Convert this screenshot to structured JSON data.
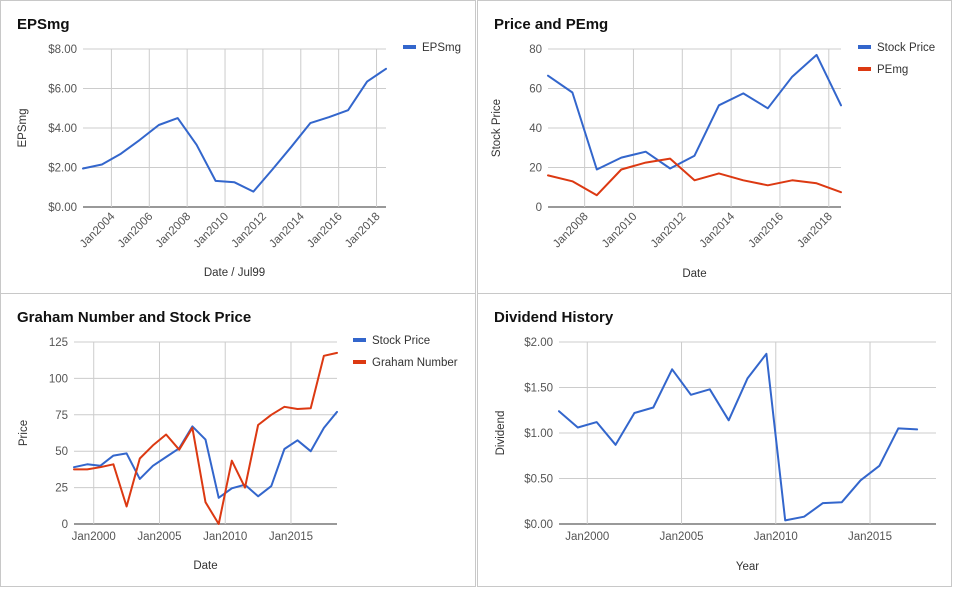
{
  "chart_data": [
    {
      "type": "line",
      "title": "EPSmg",
      "xlabel": "Date / Jul99",
      "ylabel": "EPSmg",
      "x_ticks": [
        "Jan2004",
        "Jan2006",
        "Jan2008",
        "Jan2010",
        "Jan2012",
        "Jan2014",
        "Jan2016",
        "Jan2018"
      ],
      "x": [
        2002.5,
        2003.5,
        2004.5,
        2005.5,
        2006.5,
        2007.5,
        2008.5,
        2009.5,
        2010.5,
        2011.5,
        2012.5,
        2013.5,
        2014.5,
        2015.5,
        2016.5,
        2017.5,
        2018.5
      ],
      "xlim": [
        2002.5,
        2018.5
      ],
      "y_ticks": [
        "$0.00",
        "$2.00",
        "$4.00",
        "$6.00",
        "$8.00"
      ],
      "ylim": [
        0,
        8
      ],
      "grid": true,
      "legend_position": "right",
      "series": [
        {
          "name": "EPSmg",
          "color": "#3366cc",
          "values": [
            1.95,
            2.15,
            2.7,
            3.4,
            4.15,
            4.5,
            3.15,
            1.32,
            1.25,
            0.78,
            1.9,
            3.05,
            4.25,
            4.55,
            4.9,
            6.35,
            7.0
          ]
        }
      ]
    },
    {
      "type": "line",
      "title": "Price and PEmg",
      "xlabel": "Date",
      "ylabel": "Stock Price",
      "x_ticks": [
        "Jan2008",
        "Jan2010",
        "Jan2012",
        "Jan2014",
        "Jan2016",
        "Jan2018"
      ],
      "x": [
        2006.5,
        2007.5,
        2008.5,
        2009.5,
        2010.5,
        2011.5,
        2012.5,
        2013.5,
        2014.5,
        2015.5,
        2016.5,
        2017.5,
        2018.5
      ],
      "xlim": [
        2006.5,
        2018.5
      ],
      "y_ticks": [
        "0",
        "20",
        "40",
        "60",
        "80"
      ],
      "ylim": [
        0,
        80
      ],
      "grid": true,
      "legend_position": "right",
      "series": [
        {
          "name": "Stock Price",
          "color": "#3366cc",
          "values": [
            66.5,
            58.0,
            19.0,
            25.0,
            28.0,
            19.5,
            26.0,
            51.5,
            57.5,
            50.0,
            66.0,
            77.0,
            51.5
          ]
        },
        {
          "name": "PEmg",
          "color": "#dc3912",
          "values": [
            16.0,
            13.0,
            6.0,
            19.0,
            22.5,
            24.5,
            13.5,
            17.0,
            13.5,
            11.0,
            13.5,
            12.0,
            7.5
          ]
        }
      ]
    },
    {
      "type": "line",
      "title": "Graham Number and Stock Price",
      "xlabel": "Date",
      "ylabel": "Price",
      "x_ticks": [
        "Jan2000",
        "Jan2005",
        "Jan2010",
        "Jan2015"
      ],
      "x": [
        1998.5,
        1999.5,
        2000.5,
        2001.5,
        2002.5,
        2003.5,
        2004.5,
        2005.5,
        2006.5,
        2007.5,
        2008.5,
        2009.5,
        2010.5,
        2011.5,
        2012.5,
        2013.5,
        2014.5,
        2015.5,
        2016.5,
        2017.5,
        2018.5
      ],
      "xlim": [
        1998.5,
        2018.5
      ],
      "y_ticks": [
        "0",
        "25",
        "50",
        "75",
        "100",
        "125"
      ],
      "ylim": [
        0,
        125
      ],
      "grid": true,
      "legend_position": "right",
      "series": [
        {
          "name": "Stock Price",
          "color": "#3366cc",
          "values": [
            39,
            41,
            40,
            47,
            48.5,
            31,
            40,
            46,
            52,
            67,
            58,
            18,
            24.5,
            27,
            19,
            26,
            51.5,
            57.5,
            50,
            66,
            77
          ]
        },
        {
          "name": "Graham Number",
          "color": "#dc3912",
          "values": [
            37.5,
            37.5,
            39,
            41,
            12,
            45,
            54,
            61.5,
            51,
            66,
            15,
            0,
            43.5,
            25,
            68,
            75,
            80.5,
            79,
            79.5,
            115.5,
            117.5
          ]
        }
      ]
    },
    {
      "type": "line",
      "title": "Dividend History",
      "xlabel": "Year",
      "ylabel": "Dividend",
      "x_ticks": [
        "Jan2000",
        "Jan2005",
        "Jan2010",
        "Jan2015"
      ],
      "x": [
        1998.5,
        1999.5,
        2000.5,
        2001.5,
        2002.5,
        2003.5,
        2004.5,
        2005.5,
        2006.5,
        2007.5,
        2008.5,
        2009.5,
        2010.5,
        2011.5,
        2012.5,
        2013.5,
        2014.5,
        2015.5,
        2016.5,
        2017.5,
        2018.5
      ],
      "xlim": [
        1998.5,
        2018.5
      ],
      "y_ticks": [
        "$0.00",
        "$0.50",
        "$1.00",
        "$1.50",
        "$2.00"
      ],
      "ylim": [
        0,
        2
      ],
      "grid": true,
      "legend_position": "none",
      "series": [
        {
          "color": "#3366cc",
          "values": [
            1.24,
            1.06,
            1.12,
            0.87,
            1.22,
            1.28,
            1.7,
            1.42,
            1.48,
            1.14,
            1.6,
            1.87,
            0.04,
            0.08,
            0.23,
            0.24,
            0.48,
            0.64,
            1.05,
            1.04,
            null
          ]
        }
      ]
    }
  ]
}
